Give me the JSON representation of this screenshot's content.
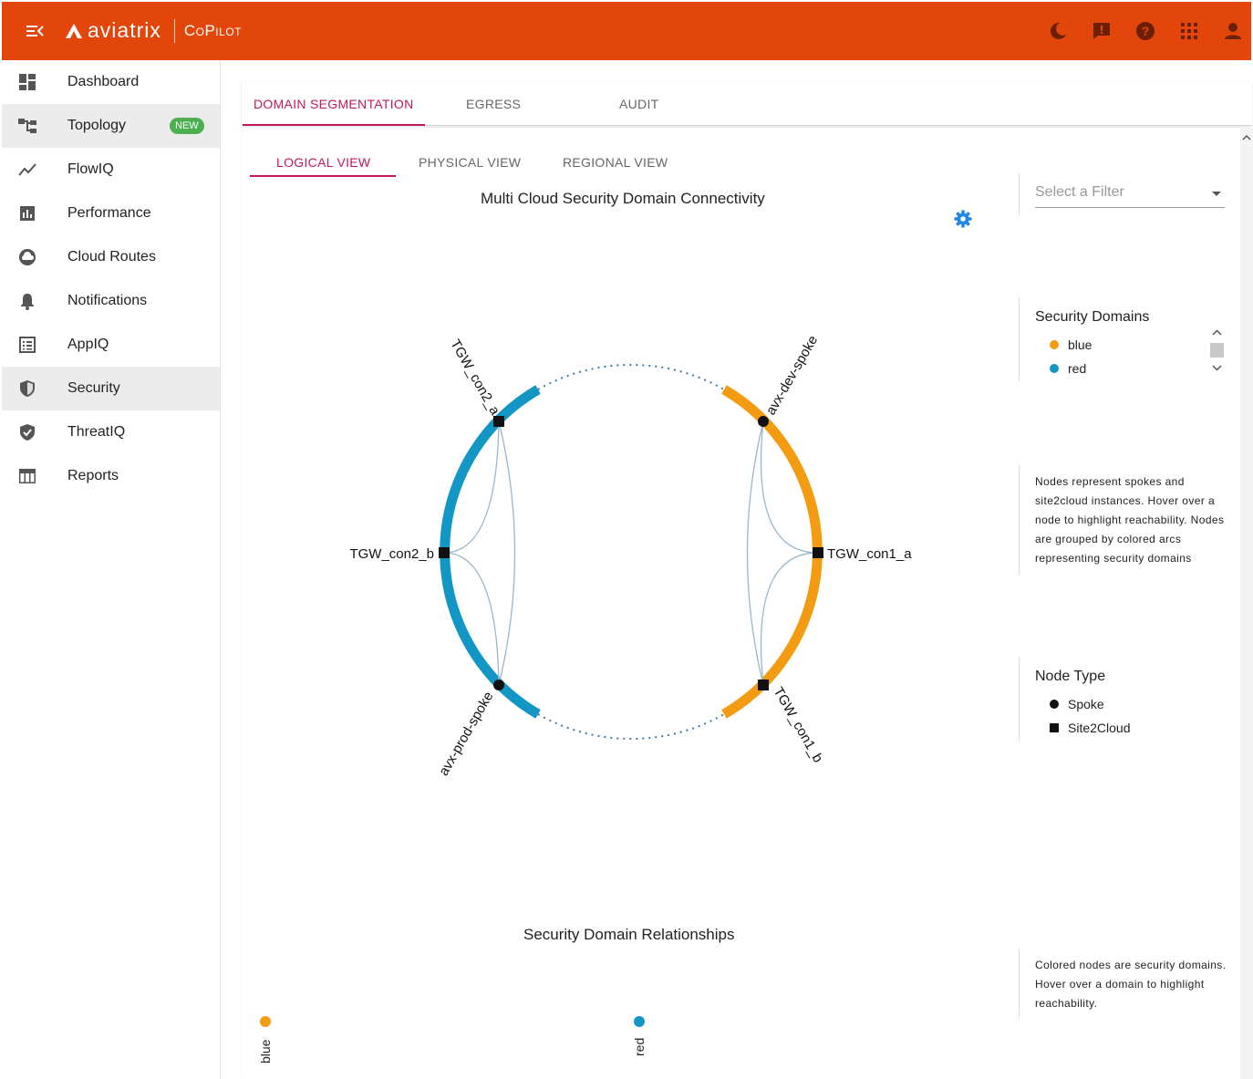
{
  "header": {
    "brand": "aviatrix",
    "product": "CoPilot",
    "icons": [
      "menu-collapse-icon",
      "moon-icon",
      "feedback-icon",
      "help-icon",
      "apps-grid-icon",
      "user-icon"
    ]
  },
  "sidebar": {
    "items": [
      {
        "label": "Dashboard",
        "icon": "dashboard-icon"
      },
      {
        "label": "Topology",
        "icon": "topology-icon",
        "badge": "NEW"
      },
      {
        "label": "FlowIQ",
        "icon": "flowiq-icon"
      },
      {
        "label": "Performance",
        "icon": "performance-icon"
      },
      {
        "label": "Cloud Routes",
        "icon": "cloud-icon"
      },
      {
        "label": "Notifications",
        "icon": "bell-icon"
      },
      {
        "label": "AppIQ",
        "icon": "appiq-icon"
      },
      {
        "label": "Security",
        "icon": "shield-icon"
      },
      {
        "label": "ThreatIQ",
        "icon": "shield-check-icon"
      },
      {
        "label": "Reports",
        "icon": "table-icon"
      }
    ],
    "active": "Security"
  },
  "main_tabs": [
    "DOMAIN SEGMENTATION",
    "EGRESS",
    "AUDIT"
  ],
  "sub_tabs": [
    "LOGICAL VIEW",
    "PHYSICAL VIEW",
    "REGIONAL VIEW"
  ],
  "chart": {
    "title": "Multi Cloud Security Domain Connectivity",
    "nodes": [
      "TGW_con2_a",
      "TGW_con2_b",
      "avx-prod-spoke",
      "avx-dev-spoke",
      "TGW_con1_a",
      "TGW_con1_b"
    ]
  },
  "filter": {
    "placeholder": "Select a Filter"
  },
  "security_domains": {
    "title": "Security Domains",
    "items": [
      {
        "label": "blue",
        "color": "#f39c12"
      },
      {
        "label": "red",
        "color": "#1296c4"
      }
    ]
  },
  "help_nodes": "Nodes represent spokes and site2cloud instances. Hover over a node to highlight reachability. Nodes are grouped by colored arcs representing security domains",
  "node_type": {
    "title": "Node Type",
    "items": [
      "Spoke",
      "Site2Cloud"
    ]
  },
  "relationships": {
    "title": "Security Domain Relationships",
    "domains": [
      "blue",
      "red"
    ],
    "help": "Colored nodes are security domains. Hover over a domain to highlight reachability."
  },
  "colors": {
    "header": "#e2460b",
    "accent": "#c2185b",
    "orange": "#f39c12",
    "blue": "#1296c4",
    "gear": "#1e88e5"
  }
}
